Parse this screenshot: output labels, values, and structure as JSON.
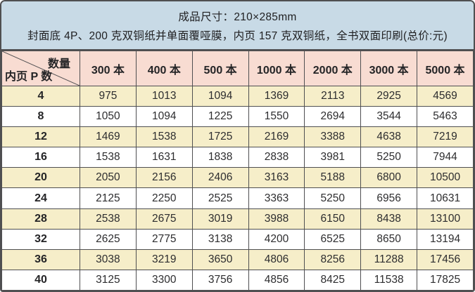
{
  "note": {
    "line1": "成品尺寸：210×285mm",
    "line2": "封面底 4P、200 克双铜纸并单面覆哑膜，内页 157 克双铜纸，全书双面印刷(总价:元)"
  },
  "table": {
    "corner_top": "数量",
    "corner_bottom": "内页 P 数",
    "columns": [
      "300 本",
      "400 本",
      "500 本",
      "1000 本",
      "2000 本",
      "3000 本",
      "5000 本"
    ],
    "rows": [
      {
        "pages": "4",
        "prices": [
          "975",
          "1013",
          "1094",
          "1369",
          "2113",
          "2925",
          "4569"
        ]
      },
      {
        "pages": "8",
        "prices": [
          "1050",
          "1094",
          "1225",
          "1550",
          "2694",
          "3544",
          "5463"
        ]
      },
      {
        "pages": "12",
        "prices": [
          "1469",
          "1538",
          "1725",
          "2169",
          "3388",
          "4638",
          "7219"
        ]
      },
      {
        "pages": "16",
        "prices": [
          "1538",
          "1631",
          "1838",
          "2838",
          "3981",
          "5250",
          "7944"
        ]
      },
      {
        "pages": "20",
        "prices": [
          "2050",
          "2156",
          "2406",
          "3163",
          "5188",
          "6800",
          "10500"
        ]
      },
      {
        "pages": "24",
        "prices": [
          "2125",
          "2250",
          "2525",
          "3363",
          "5250",
          "6956",
          "10631"
        ]
      },
      {
        "pages": "28",
        "prices": [
          "2538",
          "2675",
          "3019",
          "3988",
          "6150",
          "8438",
          "13100"
        ]
      },
      {
        "pages": "32",
        "prices": [
          "2625",
          "2775",
          "3138",
          "4200",
          "6525",
          "8650",
          "13194"
        ]
      },
      {
        "pages": "36",
        "prices": [
          "3038",
          "3219",
          "3650",
          "4806",
          "8256",
          "11288",
          "17456"
        ]
      },
      {
        "pages": "40",
        "prices": [
          "3125",
          "3300",
          "3756",
          "4856",
          "8425",
          "11538",
          "17825"
        ]
      }
    ]
  },
  "colors": {
    "note_bg": "#c8dae6",
    "header_bg": "#f8dcd2",
    "row_alt_bg": "#f6eec9",
    "row_bg": "#ffffff",
    "border": "#4f4f51"
  }
}
